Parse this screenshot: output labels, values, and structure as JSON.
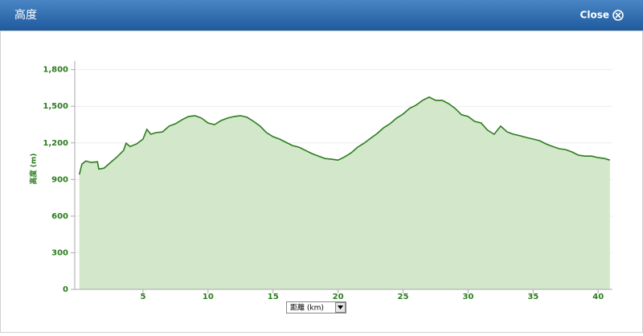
{
  "dialog": {
    "title": "高度",
    "close": "Close"
  },
  "chart_data": {
    "type": "area",
    "y_label": "高度 (m)",
    "x_label": "距離 (km)",
    "xlim": [
      -0.25,
      41.1
    ],
    "ylim": [
      0,
      1870
    ],
    "xticks": [
      5,
      10,
      15,
      20,
      25,
      30,
      35,
      40
    ],
    "yticks": [
      0,
      300,
      600,
      900,
      {
        "value": 1200,
        "label": "1,200"
      },
      {
        "value": 1500,
        "label": "1,500"
      },
      {
        "value": 1800,
        "label": "1,800"
      }
    ],
    "grid": true,
    "color": "#2a7d1c",
    "fill": "#d3e7cb",
    "x": [
      0.1,
      0.3,
      0.6,
      1,
      1.5,
      1.6,
      2,
      2.5,
      3,
      3.5,
      3.7,
      4,
      4.5,
      5,
      5.3,
      5.6,
      6,
      6.5,
      7,
      7.5,
      8,
      8.5,
      9,
      9.5,
      10,
      10.5,
      11,
      11.5,
      12,
      12.5,
      13,
      13.5,
      14,
      14.5,
      15,
      15.5,
      16,
      16.5,
      17,
      17.5,
      18,
      18.5,
      19,
      19.5,
      20,
      20.5,
      21,
      21.5,
      22,
      22.5,
      23,
      23.5,
      24,
      24.5,
      25,
      25.5,
      26,
      26.5,
      27,
      27.5,
      28,
      28.5,
      29,
      29.5,
      30,
      30.5,
      31,
      31.5,
      32,
      32.5,
      33,
      33.5,
      34,
      34.5,
      35,
      35.5,
      36,
      36.5,
      37,
      37.5,
      38,
      38.5,
      39,
      39.5,
      40,
      40.5,
      40.9
    ],
    "values": [
      940,
      1026,
      1052,
      1040,
      1045,
      986,
      993,
      1040,
      1085,
      1138,
      1198,
      1171,
      1191,
      1231,
      1310,
      1271,
      1284,
      1290,
      1337,
      1357,
      1390,
      1416,
      1423,
      1403,
      1363,
      1350,
      1383,
      1403,
      1416,
      1423,
      1410,
      1376,
      1337,
      1284,
      1251,
      1231,
      1204,
      1178,
      1165,
      1138,
      1112,
      1092,
      1072,
      1066,
      1059,
      1085,
      1118,
      1165,
      1198,
      1238,
      1277,
      1324,
      1357,
      1403,
      1436,
      1483,
      1509,
      1549,
      1575,
      1549,
      1549,
      1522,
      1483,
      1430,
      1416,
      1376,
      1363,
      1304,
      1271,
      1337,
      1290,
      1271,
      1258,
      1244,
      1231,
      1218,
      1191,
      1171,
      1152,
      1145,
      1125,
      1099,
      1092,
      1092,
      1079,
      1072,
      1059
    ]
  }
}
